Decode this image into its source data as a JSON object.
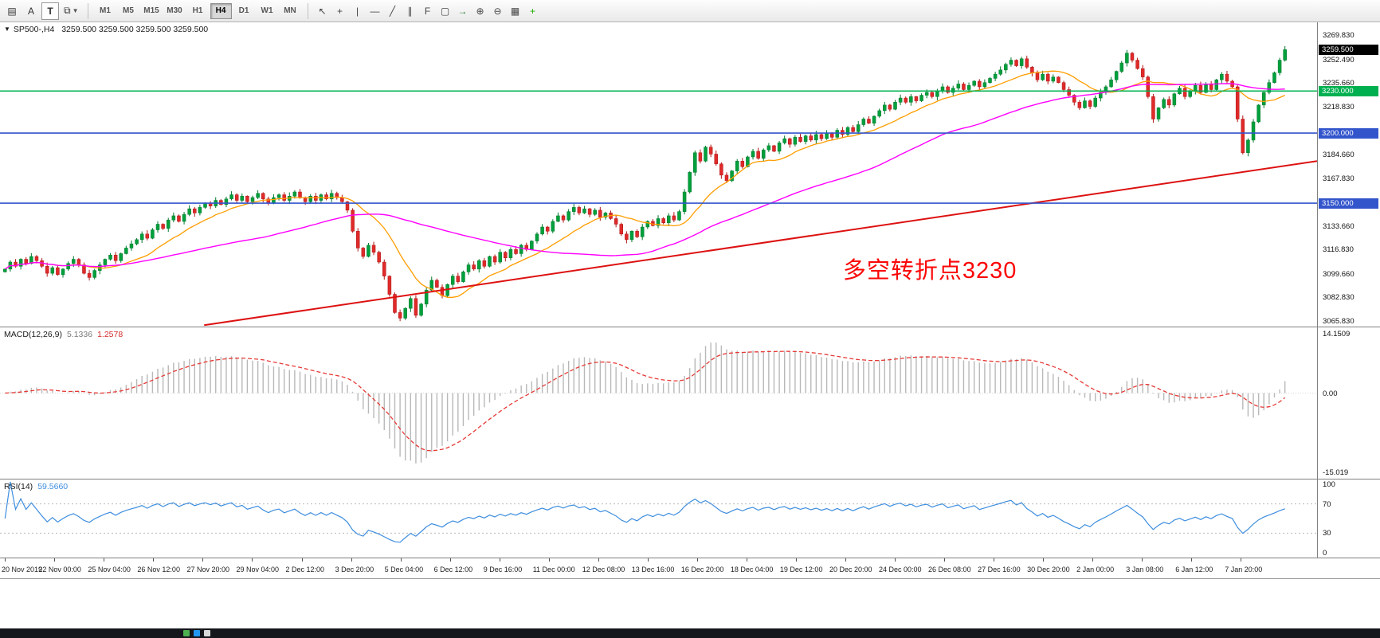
{
  "toolbar": {
    "menu_icon": "▤",
    "font_button": "A",
    "text_button": "T",
    "objects_icon": "⧉",
    "dropdown_icon": "▼",
    "timeframes": [
      "M1",
      "M5",
      "M15",
      "M30",
      "H1",
      "H4",
      "D1",
      "W1",
      "MN"
    ],
    "active_timeframe": "H4",
    "tools": [
      {
        "name": "cursor-icon",
        "glyph": "↖",
        "color": "#444444"
      },
      {
        "name": "crosshair-icon",
        "glyph": "+",
        "color": "#444444"
      },
      {
        "name": "vertical-line-icon",
        "glyph": "|",
        "color": "#444444"
      },
      {
        "name": "horizontal-line-icon",
        "glyph": "—",
        "color": "#444444"
      },
      {
        "name": "trendline-icon",
        "glyph": "╱",
        "color": "#444444"
      },
      {
        "name": "channel-icon",
        "glyph": "∥",
        "color": "#444444"
      },
      {
        "name": "fibonacci-icon",
        "glyph": "F",
        "color": "#444444"
      },
      {
        "name": "shapes-icon",
        "glyph": "▢",
        "color": "#444444"
      },
      {
        "name": "arrow-marker-icon",
        "glyph": "→",
        "color": "#2e7d32"
      },
      {
        "name": "zoom-in-icon",
        "glyph": "⊕",
        "color": "#444444"
      },
      {
        "name": "zoom-out-icon",
        "glyph": "⊖",
        "color": "#444444"
      },
      {
        "name": "tile-windows-icon",
        "glyph": "▦",
        "color": "#444444"
      },
      {
        "name": "add-indicator-icon",
        "glyph": "+",
        "color": "#1faa00"
      }
    ]
  },
  "chart": {
    "collapse_icon": "▼",
    "title": "SP500-,H4",
    "ohlc": "3259.500 3259.500 3259.500 3259.500",
    "annotation": "多空转折点3230",
    "axis_ticks": [
      "3269.830",
      "3252.490",
      "3235.660",
      "3218.830",
      "3184.660",
      "3167.830",
      "3133.660",
      "3116.830",
      "3099.660",
      "3082.830",
      "3065.830"
    ],
    "badges": [
      {
        "text": "3259.500",
        "price": 3259.5,
        "bg": "#000000",
        "fg": "#ffffff"
      },
      {
        "text": "3230.000",
        "price": 3230.0,
        "bg": "#00b050",
        "fg": "#ffffff"
      },
      {
        "text": "3200.000",
        "price": 3200.0,
        "bg": "#3355cc",
        "fg": "#ffffff"
      },
      {
        "text": "3150.000",
        "price": 3150.0,
        "bg": "#3355cc",
        "fg": "#ffffff"
      }
    ],
    "hlines": [
      {
        "price": 3230.0,
        "color": "#00b050"
      },
      {
        "price": 3200.0,
        "color": "#3355cc"
      },
      {
        "price": 3150.0,
        "color": "#3355cc"
      }
    ],
    "y_range": {
      "max": 3279,
      "min": 3062
    }
  },
  "chart_data": {
    "type": "candlestick",
    "symbol": "SP500-",
    "timeframe": "H4",
    "title": "SP500-,H4 3259.500 3259.500 3259.500 3259.500",
    "closes": [
      3103,
      3108,
      3105,
      3110,
      3107,
      3112,
      3109,
      3105,
      3100,
      3104,
      3099,
      3103,
      3107,
      3110,
      3106,
      3100,
      3097,
      3102,
      3106,
      3110,
      3113,
      3109,
      3114,
      3118,
      3121,
      3124,
      3128,
      3125,
      3131,
      3135,
      3132,
      3138,
      3141,
      3137,
      3142,
      3146,
      3143,
      3147,
      3150,
      3148,
      3152,
      3149,
      3153,
      3156,
      3152,
      3155,
      3151,
      3154,
      3157,
      3153,
      3150,
      3154,
      3156,
      3152,
      3155,
      3158,
      3154,
      3151,
      3155,
      3152,
      3156,
      3153,
      3157,
      3154,
      3151,
      3145,
      3130,
      3118,
      3112,
      3120,
      3115,
      3108,
      3098,
      3085,
      3072,
      3068,
      3075,
      3082,
      3070,
      3078,
      3088,
      3095,
      3090,
      3084,
      3092,
      3098,
      3094,
      3101,
      3106,
      3103,
      3109,
      3105,
      3112,
      3108,
      3115,
      3111,
      3117,
      3114,
      3120,
      3117,
      3123,
      3128,
      3133,
      3130,
      3137,
      3141,
      3138,
      3144,
      3147,
      3143,
      3146,
      3142,
      3145,
      3140,
      3143,
      3139,
      3135,
      3128,
      3124,
      3130,
      3126,
      3133,
      3137,
      3134,
      3139,
      3136,
      3141,
      3138,
      3144,
      3158,
      3172,
      3186,
      3180,
      3190,
      3185,
      3178,
      3170,
      3166,
      3173,
      3180,
      3176,
      3183,
      3187,
      3182,
      3188,
      3191,
      3187,
      3193,
      3196,
      3192,
      3197,
      3194,
      3198,
      3195,
      3199,
      3196,
      3200,
      3197,
      3202,
      3199,
      3204,
      3201,
      3206,
      3210,
      3207,
      3212,
      3216,
      3220,
      3217,
      3222,
      3225,
      3222,
      3226,
      3223,
      3227,
      3229,
      3226,
      3230,
      3233,
      3229,
      3232,
      3235,
      3231,
      3234,
      3237,
      3233,
      3236,
      3239,
      3242,
      3245,
      3249,
      3252,
      3248,
      3253,
      3247,
      3243,
      3238,
      3242,
      3237,
      3240,
      3236,
      3231,
      3227,
      3222,
      3218,
      3223,
      3219,
      3225,
      3229,
      3233,
      3238,
      3244,
      3250,
      3257,
      3252,
      3246,
      3240,
      3226,
      3210,
      3218,
      3224,
      3220,
      3228,
      3232,
      3226,
      3230,
      3234,
      3229,
      3235,
      3231,
      3238,
      3242,
      3237,
      3233,
      3210,
      3186,
      3195,
      3208,
      3220,
      3229,
      3236,
      3243,
      3252,
      3259.5
    ],
    "time_labels": [
      "20 Nov 2019",
      "22 Nov 00:00",
      "25 Nov 04:00",
      "26 Nov 12:00",
      "27 Nov 20:00",
      "29 Nov 04:00",
      "2 Dec 12:00",
      "3 Dec 20:00",
      "5 Dec 04:00",
      "6 Dec 12:00",
      "9 Dec 16:00",
      "11 Dec 00:00",
      "12 Dec 08:00",
      "13 Dec 16:00",
      "16 Dec 20:00",
      "18 Dec 04:00",
      "19 Dec 12:00",
      "20 Dec 20:00",
      "24 Dec 00:00",
      "26 Dec 08:00",
      "27 Dec 16:00",
      "30 Dec 20:00",
      "2 Jan 00:00",
      "3 Jan 08:00",
      "6 Jan 12:00",
      "7 Jan 20:00"
    ],
    "levels": [
      3230.0,
      3200.0,
      3150.0
    ],
    "indicators": [
      {
        "name": "SMA-fast",
        "period": 13,
        "color": "#ff9d00"
      },
      {
        "name": "SMA-mid",
        "period": 50,
        "color": "#ff00ff"
      },
      {
        "name": "MACD",
        "params": [
          12,
          26,
          9
        ],
        "current": [
          5.1336,
          1.2578
        ]
      },
      {
        "name": "RSI",
        "params": [
          14
        ],
        "current": 59.566
      }
    ]
  },
  "macd": {
    "label": "MACD(12,26,9)",
    "value1": "5.1336",
    "value2": "1.2578",
    "scale_top": "14.1509",
    "scale_zero": "0.00",
    "scale_bottom": "-15.019",
    "fast": 12,
    "slow": 26,
    "signal": 9
  },
  "rsi": {
    "label": "RSI(14)",
    "value": "59.5660",
    "period": 14,
    "levels": [
      "100",
      "70",
      "30",
      "0"
    ],
    "level_values": [
      100,
      70,
      30,
      0
    ]
  },
  "colors": {
    "up": "#00a03c",
    "up_stroke": "#00782c",
    "down": "#e02a2a",
    "down_stroke": "#b01616",
    "ma_fast": "#ff9d00",
    "ma_mid": "#ff00ff",
    "trend": "#dd1111",
    "macd_hist": "#b8b8b8",
    "macd_signal": "#e53935",
    "rsi_line": "#3e8ede",
    "rsi_level": "#b9b9b9",
    "annotation": "#fb0707"
  },
  "taskbar": {
    "icon_colors": [
      "#4caf50",
      "#2196f3",
      "#d9d9d9"
    ]
  }
}
